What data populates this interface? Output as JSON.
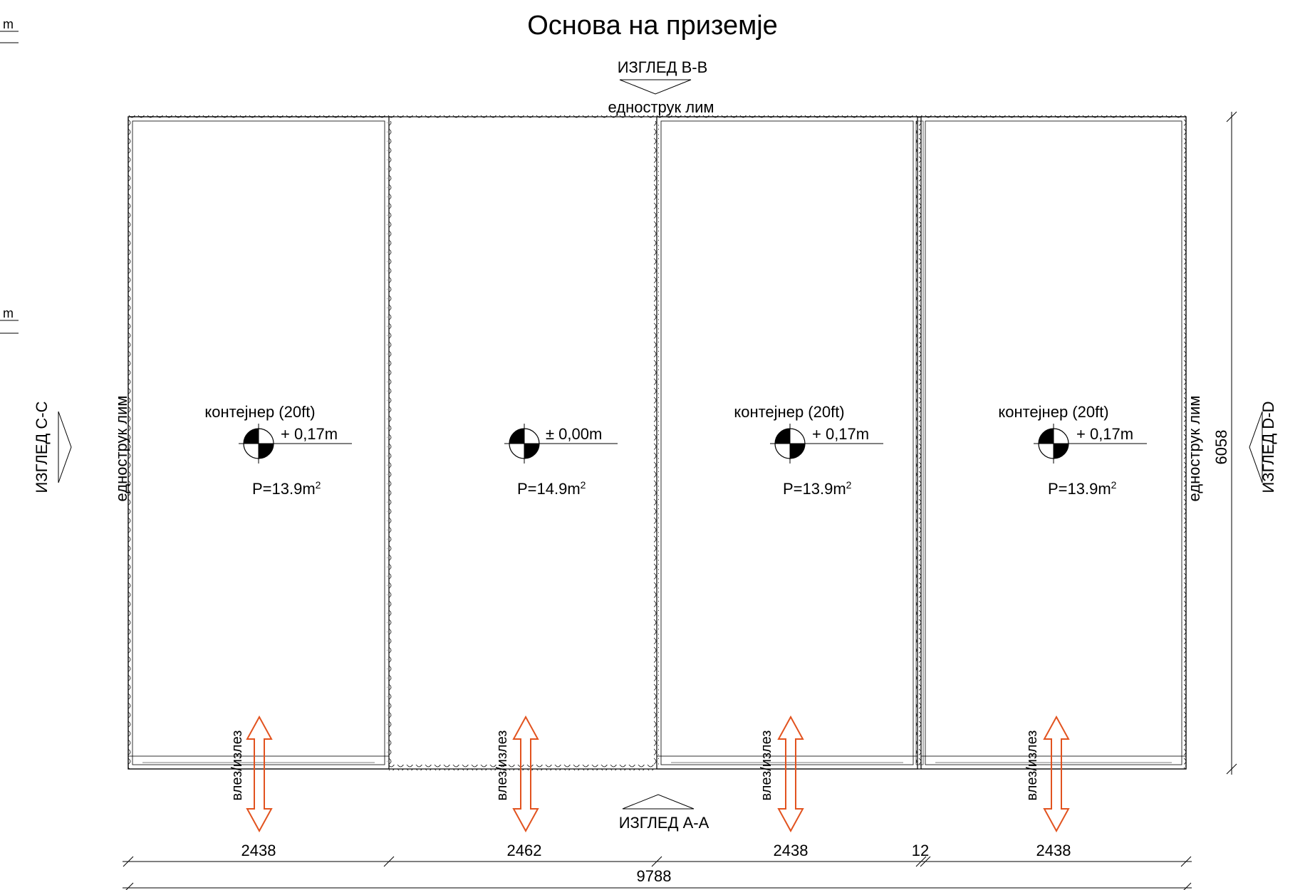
{
  "title": "Основа на приземје",
  "elevation_labels": {
    "top": "ИЗГЛЕД   В-В",
    "bottom": "ИЗГЛЕД   А-А",
    "left": "ИЗГЛЕД   C-C",
    "right": "ИЗГЛЕД   D-D"
  },
  "sheet_labels": {
    "top": "еднострук лим",
    "left": "еднострук лим",
    "right": "еднострук лим"
  },
  "margin_fragments": [
    "m",
    "m"
  ],
  "rooms": [
    {
      "name": "контејнер (20ft)",
      "level": "+ 0,17m",
      "area": "P=13.9m",
      "area_sup": "2",
      "door": "влез/излез"
    },
    {
      "name": "",
      "level": "± 0,00m",
      "area": "P=14.9m",
      "area_sup": "2",
      "door": "влез/излез"
    },
    {
      "name": "контејнер (20ft)",
      "level": "+ 0,17m",
      "area": "P=13.9m",
      "area_sup": "2",
      "door": "влез/излез"
    },
    {
      "name": "контејнер (20ft)",
      "level": "+ 0,17m",
      "area": "P=13.9m",
      "area_sup": "2",
      "door": "влез/излез"
    }
  ],
  "dimensions": {
    "segments": [
      "2438",
      "2462",
      "2438",
      "12",
      "2438"
    ],
    "total": "9788",
    "height": "6058"
  },
  "colors": {
    "line": "#000000",
    "door_arrow": "#e2531f"
  }
}
